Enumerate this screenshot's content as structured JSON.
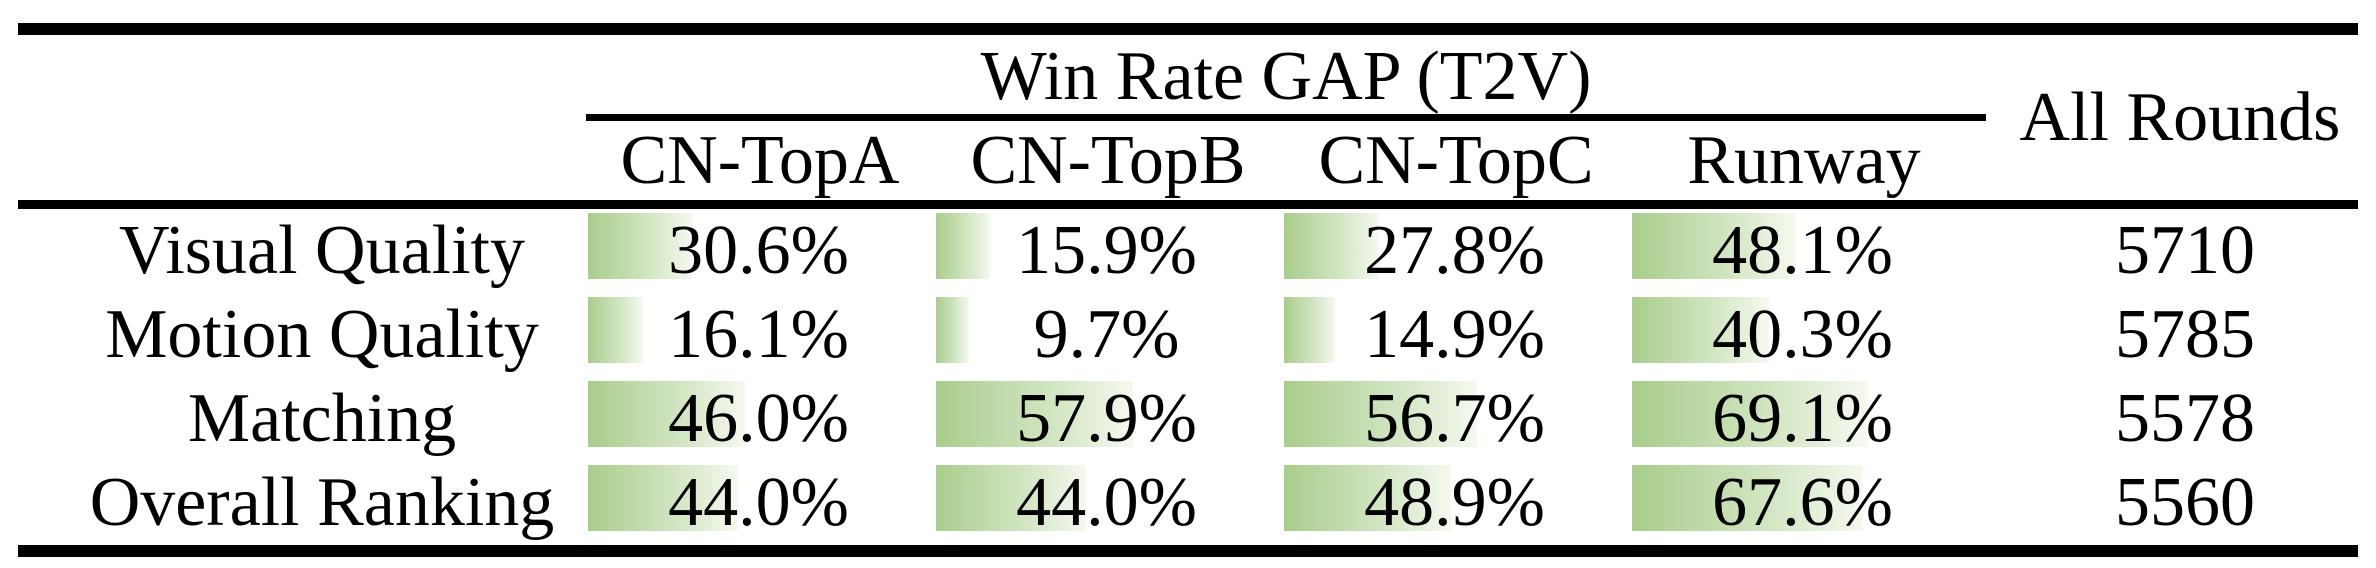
{
  "colors": {
    "bar-green-start": "#a8cd8c",
    "bar-green-mid": "#d7e8c8",
    "bar-green-end": "#f5f9f0",
    "rule-black": "#000000",
    "text-black": "#000000"
  },
  "table": {
    "title": "Win Rate GAP (T2V)",
    "all_rounds_header": "All Rounds",
    "columns": [
      "CN-TopA",
      "CN-TopB",
      "CN-TopC",
      "Runway"
    ],
    "rows": [
      {
        "label": "Visual Quality",
        "values": [
          "30.6%",
          "15.9%",
          "27.8%",
          "48.1%"
        ],
        "pcts": [
          30.6,
          15.9,
          27.8,
          48.1
        ],
        "all_rounds": "5710"
      },
      {
        "label": "Motion Quality",
        "values": [
          "16.1%",
          "9.7%",
          "14.9%",
          "40.3%"
        ],
        "pcts": [
          16.1,
          9.7,
          14.9,
          40.3
        ],
        "all_rounds": "5785"
      },
      {
        "label": "Matching",
        "values": [
          "46.0%",
          "57.9%",
          "56.7%",
          "69.1%"
        ],
        "pcts": [
          46.0,
          57.9,
          56.7,
          69.1
        ],
        "all_rounds": "5578"
      },
      {
        "label": "Overall Ranking",
        "values": [
          "44.0%",
          "44.0%",
          "48.9%",
          "67.6%"
        ],
        "pcts": [
          44.0,
          44.0,
          48.9,
          67.6
        ],
        "all_rounds": "5560"
      }
    ]
  },
  "chart_data": {
    "type": "table",
    "title": "Win Rate GAP (T2V)",
    "columns": [
      "CN-TopA",
      "CN-TopB",
      "CN-TopC",
      "Runway",
      "All Rounds"
    ],
    "series": [
      {
        "name": "Visual Quality",
        "values": [
          30.6,
          15.9,
          27.8,
          48.1
        ],
        "all_rounds": 5710
      },
      {
        "name": "Motion Quality",
        "values": [
          16.1,
          9.7,
          14.9,
          40.3
        ],
        "all_rounds": 5785
      },
      {
        "name": "Matching",
        "values": [
          46.0,
          57.9,
          56.7,
          69.1
        ],
        "all_rounds": 5578
      },
      {
        "name": "Overall Ranking",
        "values": [
          44.0,
          44.0,
          48.9,
          67.6
        ],
        "all_rounds": 5560
      }
    ],
    "value_unit": "%",
    "bar_scale": "cell data bars, 100% = full cell width",
    "legend_position": "none",
    "grid": false
  }
}
